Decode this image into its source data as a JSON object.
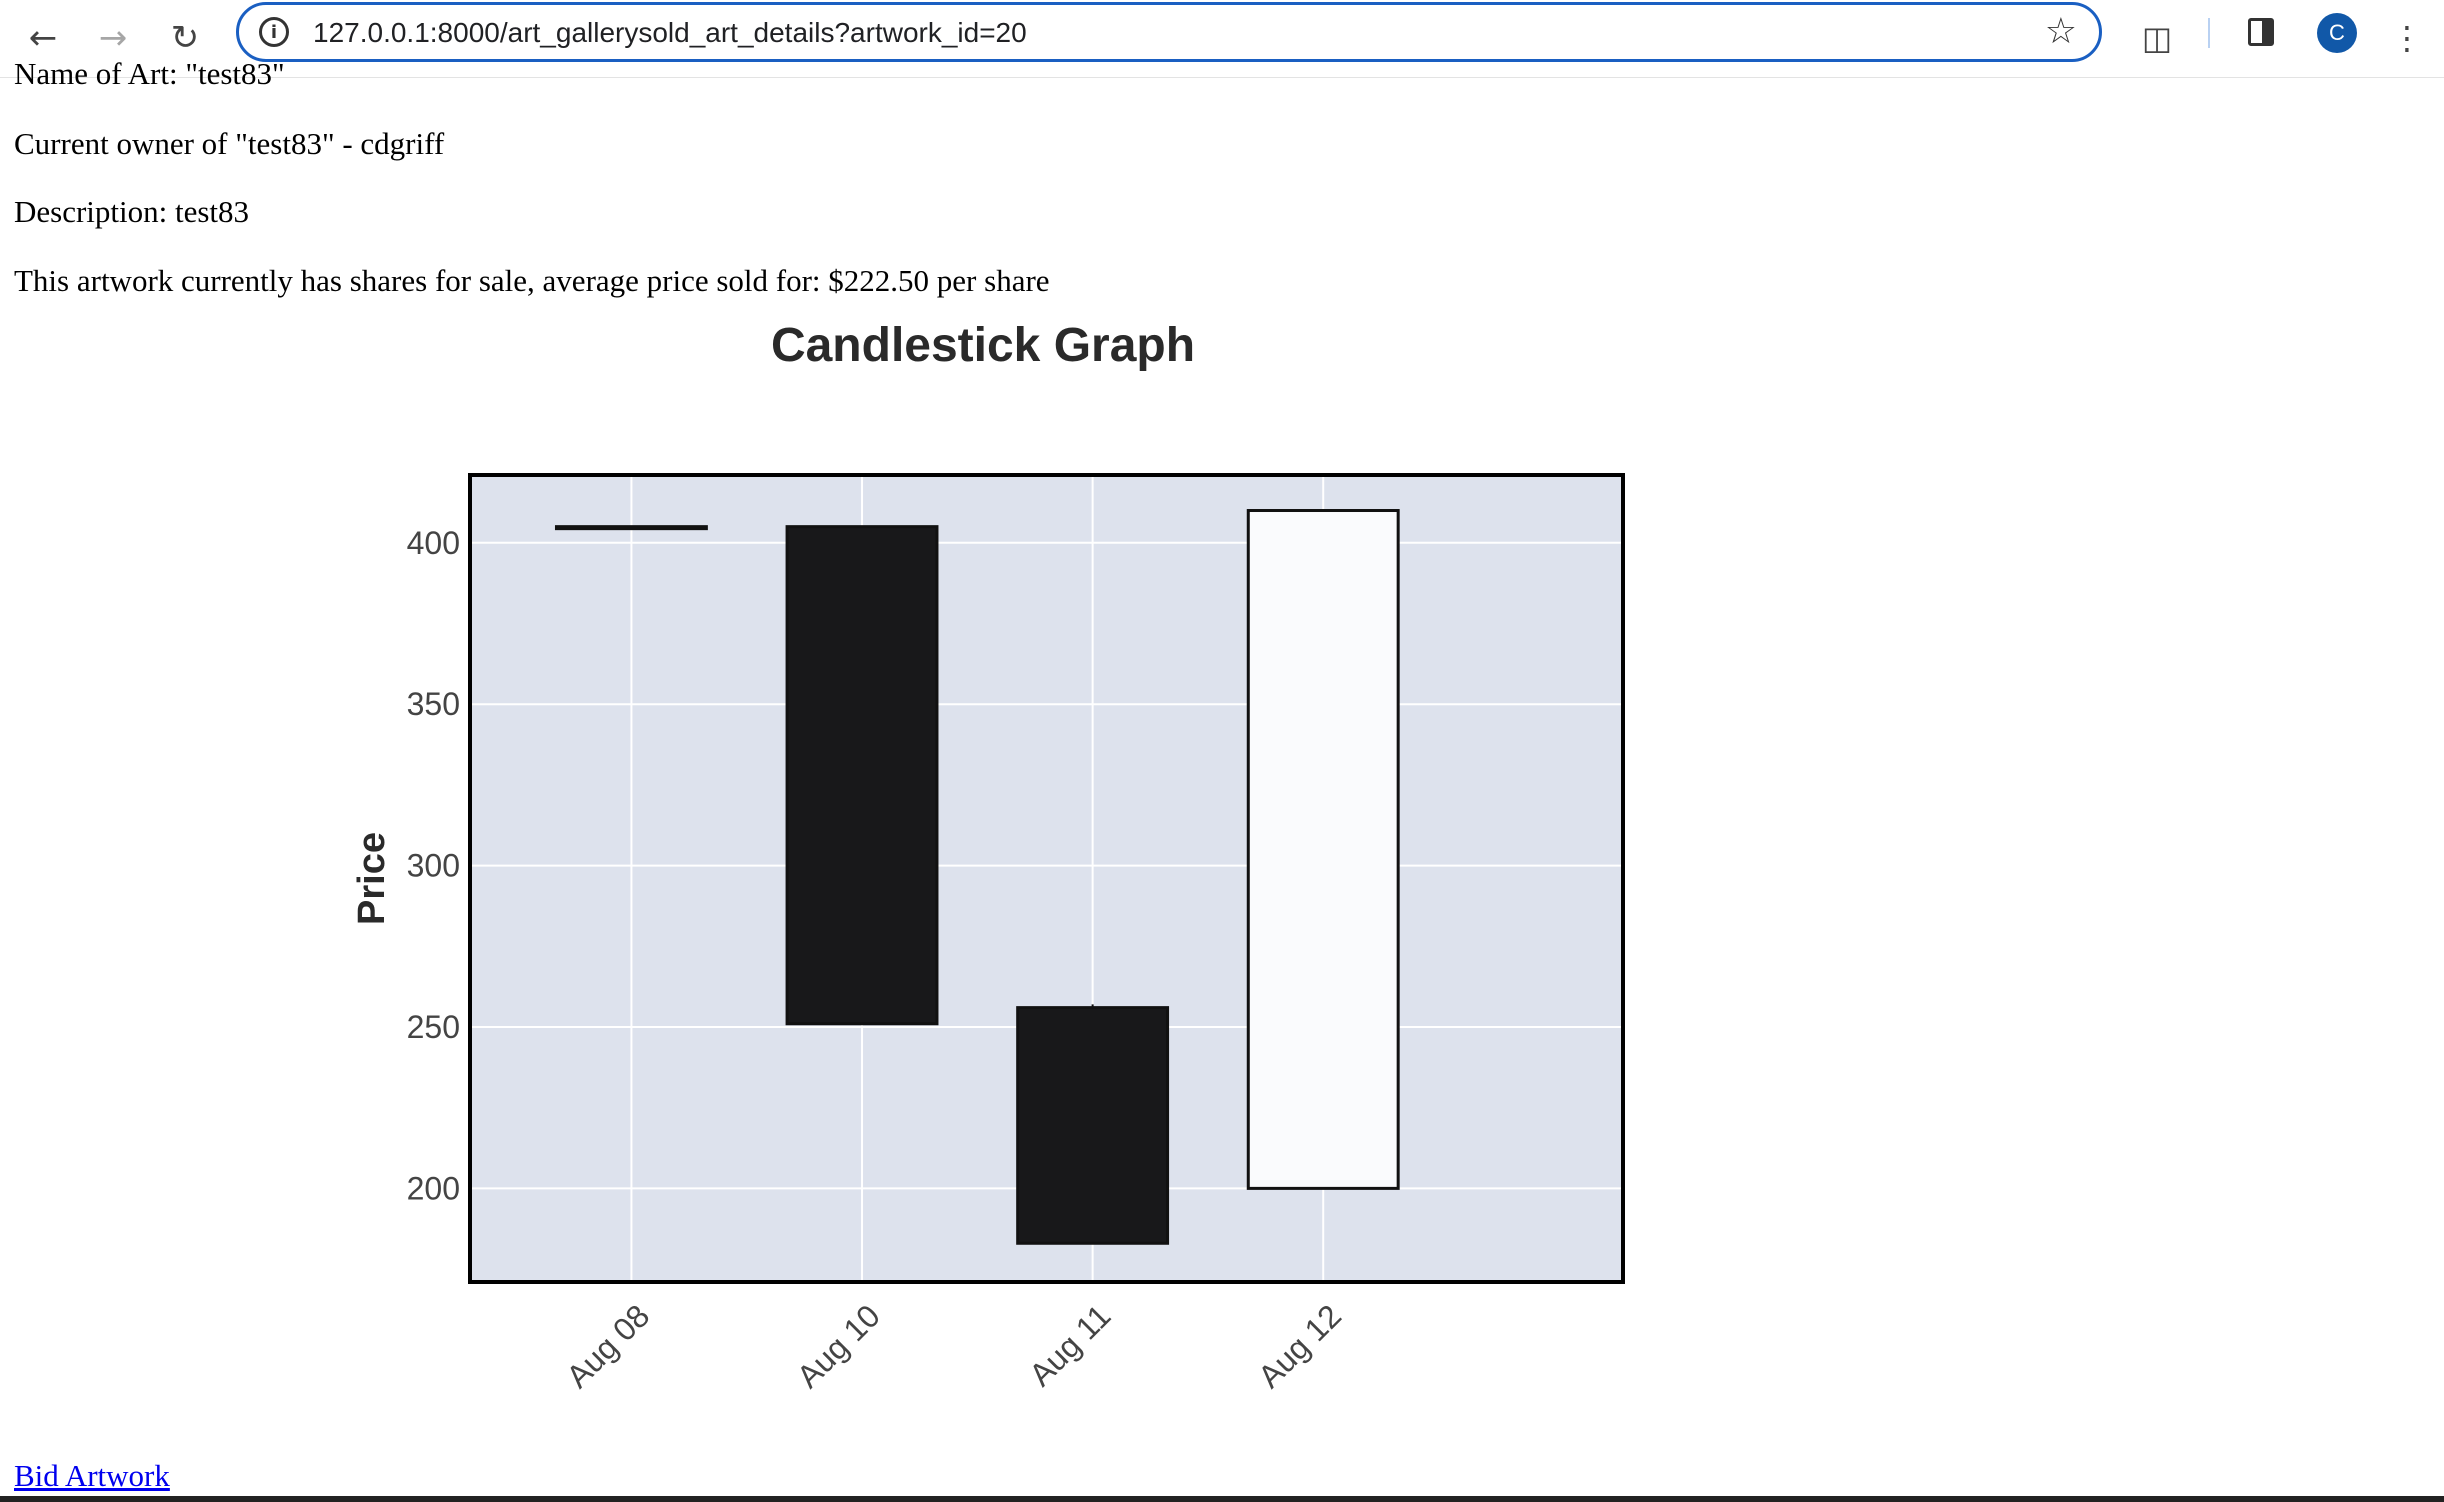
{
  "browser": {
    "url": "127.0.0.1:8000/art_gallerysold_art_details?artwork_id=20",
    "profile_initial": "C",
    "icons": [
      "back-icon",
      "forward-icon",
      "reload-icon",
      "info-icon",
      "star-icon",
      "extensions-icon",
      "side-panel-icon",
      "menu-icon"
    ]
  },
  "artwork": {
    "cut_off_line": "Name of Art: \"test83\"",
    "owner_line": "Current owner of \"test83\" - cdgriff",
    "description_line": "Description: test83",
    "sale_line": "This artwork currently has shares for sale, average price sold for: $222.50 per share"
  },
  "chart_data": {
    "type": "candlestick",
    "title": "Candlestick Graph",
    "ylabel": "Price",
    "xlabel": "",
    "categories": [
      "Aug 08",
      "Aug 10",
      "Aug 11",
      "Aug 12"
    ],
    "ohlc": [
      {
        "date": "Aug 08",
        "open": 405,
        "high": 405,
        "low": 405,
        "close": 405
      },
      {
        "date": "Aug 10",
        "open": 405,
        "high": 405,
        "low": 251,
        "close": 251
      },
      {
        "date": "Aug 11",
        "open": 256,
        "high": 257,
        "low": 183,
        "close": 183
      },
      {
        "date": "Aug 12",
        "open": 200,
        "high": 410,
        "low": 200,
        "close": 410
      }
    ],
    "yticks": [
      200,
      250,
      300,
      350,
      400
    ],
    "ylim": [
      171,
      421
    ],
    "grid": true,
    "colors": {
      "up": "#fafbfd",
      "down": "#18181a",
      "background": "#dde2ed",
      "grid": "#ffffff"
    }
  },
  "actions": {
    "bid_link": "Bid Artwork"
  }
}
